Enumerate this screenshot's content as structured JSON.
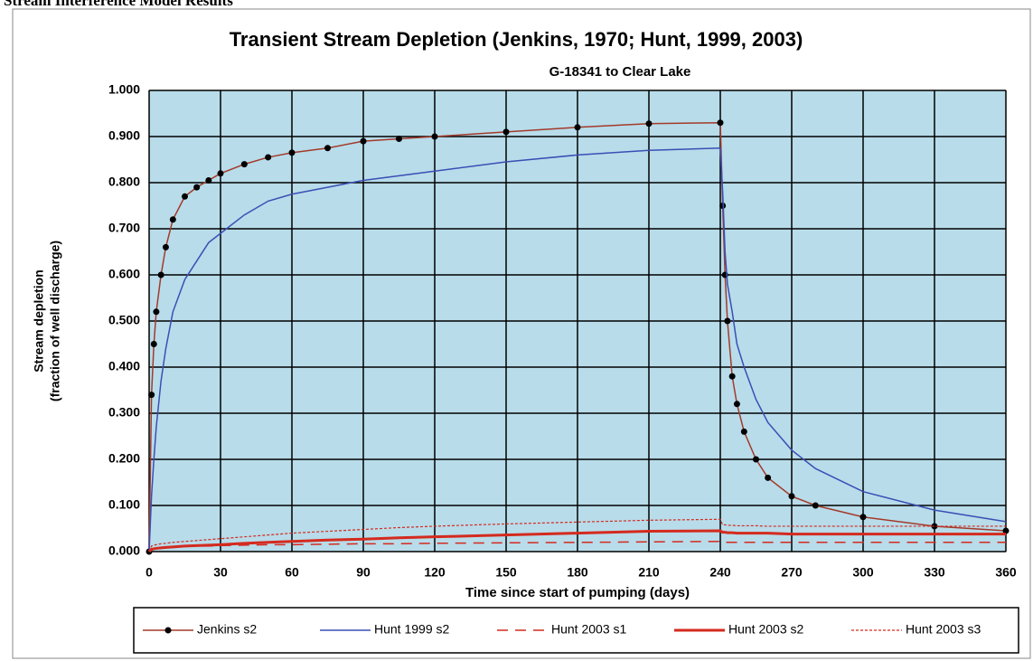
{
  "header": {
    "title": "Stream Interference Model Results"
  },
  "chart_data": {
    "type": "line",
    "title": "Transient Stream Depletion (Jenkins, 1970; Hunt, 1999, 2003)",
    "subtitle": "G-18341 to Clear Lake",
    "xlabel": "Time since start of pumping (days)",
    "ylabel": [
      "Stream depletion",
      "(fraction of well discharge)"
    ],
    "x": [
      0,
      1,
      2,
      3,
      5,
      7,
      10,
      15,
      20,
      25,
      30,
      40,
      50,
      60,
      75,
      90,
      105,
      120,
      150,
      180,
      210,
      240,
      241,
      242,
      243,
      245,
      247,
      250,
      255,
      260,
      270,
      280,
      300,
      330,
      360
    ],
    "series": [
      {
        "name": "Jenkins s2",
        "color": "#a33a2a",
        "style": "solid",
        "width": 1.5,
        "markers": true,
        "values": [
          0,
          0.34,
          0.45,
          0.52,
          0.6,
          0.66,
          0.72,
          0.77,
          0.79,
          0.805,
          0.82,
          0.84,
          0.855,
          0.865,
          0.875,
          0.89,
          0.895,
          0.9,
          0.91,
          0.92,
          0.928,
          0.93,
          0.75,
          0.6,
          0.5,
          0.38,
          0.32,
          0.26,
          0.2,
          0.16,
          0.12,
          0.1,
          0.075,
          0.055,
          0.045
        ]
      },
      {
        "name": "Hunt 1999 s2",
        "color": "#3a4fb5",
        "style": "solid",
        "width": 1.5,
        "markers": false,
        "values": [
          0,
          0.12,
          0.2,
          0.27,
          0.37,
          0.44,
          0.52,
          0.59,
          0.63,
          0.67,
          0.69,
          0.73,
          0.76,
          0.775,
          0.79,
          0.805,
          0.815,
          0.825,
          0.845,
          0.86,
          0.87,
          0.875,
          0.78,
          0.65,
          0.58,
          0.52,
          0.45,
          0.4,
          0.33,
          0.28,
          0.22,
          0.18,
          0.13,
          0.09,
          0.065
        ]
      },
      {
        "name": "Hunt 2003 s1",
        "color": "#d42a1e",
        "style": "dashed",
        "width": 1.5,
        "markers": false,
        "values": [
          0,
          0.005,
          0.006,
          0.007,
          0.008,
          0.009,
          0.01,
          0.011,
          0.012,
          0.012,
          0.013,
          0.014,
          0.015,
          0.015,
          0.016,
          0.017,
          0.017,
          0.018,
          0.019,
          0.02,
          0.021,
          0.022,
          0.02,
          0.02,
          0.02,
          0.02,
          0.02,
          0.02,
          0.02,
          0.02,
          0.02,
          0.02,
          0.02,
          0.02,
          0.02
        ]
      },
      {
        "name": "Hunt 2003 s2",
        "color": "#d42a1e",
        "style": "solid",
        "width": 3,
        "markers": false,
        "values": [
          0,
          0.005,
          0.006,
          0.007,
          0.008,
          0.009,
          0.01,
          0.012,
          0.013,
          0.014,
          0.015,
          0.018,
          0.02,
          0.022,
          0.025,
          0.027,
          0.03,
          0.032,
          0.036,
          0.04,
          0.044,
          0.045,
          0.042,
          0.042,
          0.041,
          0.041,
          0.04,
          0.04,
          0.04,
          0.04,
          0.038,
          0.038,
          0.038,
          0.038,
          0.038
        ]
      },
      {
        "name": "Hunt 2003 s3",
        "color": "#d42a1e",
        "style": "dotted",
        "width": 1.2,
        "markers": false,
        "values": [
          0,
          0.012,
          0.014,
          0.015,
          0.017,
          0.018,
          0.02,
          0.022,
          0.024,
          0.026,
          0.028,
          0.032,
          0.036,
          0.04,
          0.044,
          0.048,
          0.052,
          0.055,
          0.06,
          0.064,
          0.068,
          0.07,
          0.058,
          0.058,
          0.057,
          0.057,
          0.056,
          0.056,
          0.056,
          0.055,
          0.055,
          0.055,
          0.055,
          0.055,
          0.055
        ]
      }
    ],
    "xlim": [
      0,
      360
    ],
    "xticks": [
      0,
      30,
      60,
      90,
      120,
      150,
      180,
      210,
      240,
      270,
      300,
      330,
      360
    ],
    "ylim": [
      0,
      1
    ],
    "yticks": [
      {
        "value": 0,
        "label": "0.000"
      },
      {
        "value": 0.1,
        "label": "0.100"
      },
      {
        "value": 0.2,
        "label": "0.200"
      },
      {
        "value": 0.3,
        "label": "0.300"
      },
      {
        "value": 0.4,
        "label": "0.400"
      },
      {
        "value": 0.5,
        "label": "0.500"
      },
      {
        "value": 0.6,
        "label": "0.600"
      },
      {
        "value": 0.7,
        "label": "0.700"
      },
      {
        "value": 0.8,
        "label": "0.800"
      },
      {
        "value": 0.9,
        "label": "0.900"
      },
      {
        "value": 1,
        "label": "1.000"
      }
    ],
    "grid": true,
    "plot_background": "#b8dcea",
    "legend": "bottom"
  }
}
